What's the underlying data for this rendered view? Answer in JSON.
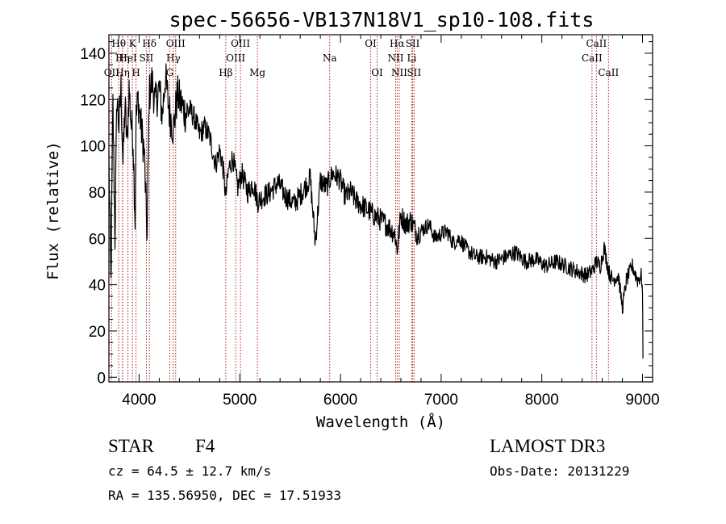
{
  "chart_data": {
    "type": "line",
    "title": "spec-56656-VB137N18V1_sp10-108.fits",
    "xlabel": "Wavelength (Å)",
    "ylabel": "Flux (relative)",
    "xlim": [
      3700,
      9100
    ],
    "ylim": [
      -2,
      148
    ],
    "xticks": [
      4000,
      5000,
      6000,
      7000,
      8000,
      9000
    ],
    "xtick_labels": [
      "4000",
      "5000",
      "6000",
      "7000",
      "8000",
      "9000"
    ],
    "yticks": [
      0,
      20,
      40,
      60,
      80,
      100,
      120,
      140
    ],
    "ytick_labels": [
      "0",
      "20",
      "40",
      "60",
      "80",
      "100",
      "120",
      "140"
    ],
    "series": [
      {
        "name": "flux",
        "x": [
          3700,
          3720,
          3740,
          3760,
          3780,
          3800,
          3820,
          3840,
          3860,
          3880,
          3900,
          3920,
          3940,
          3960,
          3970,
          3990,
          4020,
          4050,
          4080,
          4100,
          4130,
          4160,
          4200,
          4230,
          4260,
          4300,
          4340,
          4380,
          4420,
          4460,
          4500,
          4550,
          4600,
          4650,
          4700,
          4760,
          4800,
          4830,
          4861,
          4890,
          4930,
          4980,
          5020,
          5080,
          5130,
          5180,
          5230,
          5300,
          5380,
          5460,
          5540,
          5620,
          5700,
          5750,
          5800,
          5860,
          5920,
          5990,
          6050,
          6100,
          6160,
          6220,
          6280,
          6330,
          6400,
          6480,
          6540,
          6563,
          6600,
          6650,
          6700,
          6760,
          6820,
          6880,
          6940,
          7000,
          7060,
          7120,
          7180,
          7260,
          7340,
          7440,
          7540,
          7640,
          7740,
          7840,
          7940,
          8040,
          8140,
          8240,
          8340,
          8440,
          8500,
          8542,
          8580,
          8620,
          8662,
          8700,
          8760,
          8800,
          8840,
          8900,
          8950,
          8990,
          9000,
          9005
        ],
        "values": [
          95,
          40,
          118,
          60,
          122,
          108,
          125,
          92,
          118,
          100,
          125,
          110,
          103,
          68,
          112,
          120,
          108,
          98,
          60,
          122,
          128,
          118,
          125,
          113,
          130,
          115,
          107,
          122,
          118,
          114,
          116,
          112,
          105,
          108,
          104,
          92,
          98,
          92,
          78,
          90,
          95,
          82,
          88,
          80,
          84,
          76,
          78,
          80,
          84,
          78,
          75,
          80,
          86,
          58,
          85,
          82,
          88,
          86,
          78,
          80,
          76,
          74,
          72,
          70,
          68,
          65,
          62,
          55,
          70,
          66,
          68,
          62,
          64,
          66,
          60,
          62,
          63,
          58,
          60,
          55,
          52,
          52,
          50,
          52,
          54,
          50,
          51,
          48,
          50,
          48,
          46,
          44,
          46,
          50,
          48,
          56,
          46,
          42,
          44,
          30,
          42,
          48,
          42,
          44,
          36,
          8
        ]
      }
    ],
    "emission_lines": [
      {
        "label": "Hη",
        "wavelength": 3835,
        "row": 1
      },
      {
        "label": "OII",
        "wavelength": 3727,
        "row": 2
      },
      {
        "label": "Hθ",
        "wavelength": 3798,
        "row": 0
      },
      {
        "label": "Hη",
        "wavelength": 3836,
        "row": 3
      },
      {
        "label": "HeI",
        "wavelength": 3889,
        "row": 1
      },
      {
        "label": "K",
        "wavelength": 3934,
        "row": 0
      },
      {
        "label": "H",
        "wavelength": 3969,
        "row": 3
      },
      {
        "label": "SII",
        "wavelength": 4072,
        "row": 1
      },
      {
        "label": "Hδ",
        "wavelength": 4102,
        "row": 0
      },
      {
        "label": "G",
        "wavelength": 4305,
        "row": 3
      },
      {
        "label": "Hγ",
        "wavelength": 4340,
        "row": 1
      },
      {
        "label": "OIII",
        "wavelength": 4363,
        "row": 0
      },
      {
        "label": "Hβ",
        "wavelength": 4861,
        "row": 3
      },
      {
        "label": "OIII",
        "wavelength": 4959,
        "row": 1
      },
      {
        "label": "OIII",
        "wavelength": 5007,
        "row": 0
      },
      {
        "label": "Mg",
        "wavelength": 5175,
        "row": 3
      },
      {
        "label": "Na",
        "wavelength": 5893,
        "row": 1
      },
      {
        "label": "OI",
        "wavelength": 6300,
        "row": 0
      },
      {
        "label": "OI",
        "wavelength": 6364,
        "row": 3
      },
      {
        "label": "NII",
        "wavelength": 6548,
        "row": 1
      },
      {
        "label": "Hα",
        "wavelength": 6563,
        "row": 0
      },
      {
        "label": "NII",
        "wavelength": 6584,
        "row": 3
      },
      {
        "label": "SII",
        "wavelength": 6717,
        "row": 0
      },
      {
        "label": "Li",
        "wavelength": 6708,
        "row": 1
      },
      {
        "label": "SII",
        "wavelength": 6731,
        "row": 3
      },
      {
        "label": "CaII",
        "wavelength": 8498,
        "row": 1
      },
      {
        "label": "CaII",
        "wavelength": 8542,
        "row": 0
      },
      {
        "label": "CaII",
        "wavelength": 8662,
        "row": 3
      }
    ],
    "line_color": "#000000",
    "marker_color": "#b22222"
  },
  "info": {
    "class_label": "STAR",
    "subclass": "F4",
    "cz": "cz = 64.5 ± 12.7 km/s",
    "coords": "RA = 135.56950, DEC =  17.51933",
    "survey": "LAMOST DR3",
    "obs_date": "Obs-Date: 20131229"
  }
}
